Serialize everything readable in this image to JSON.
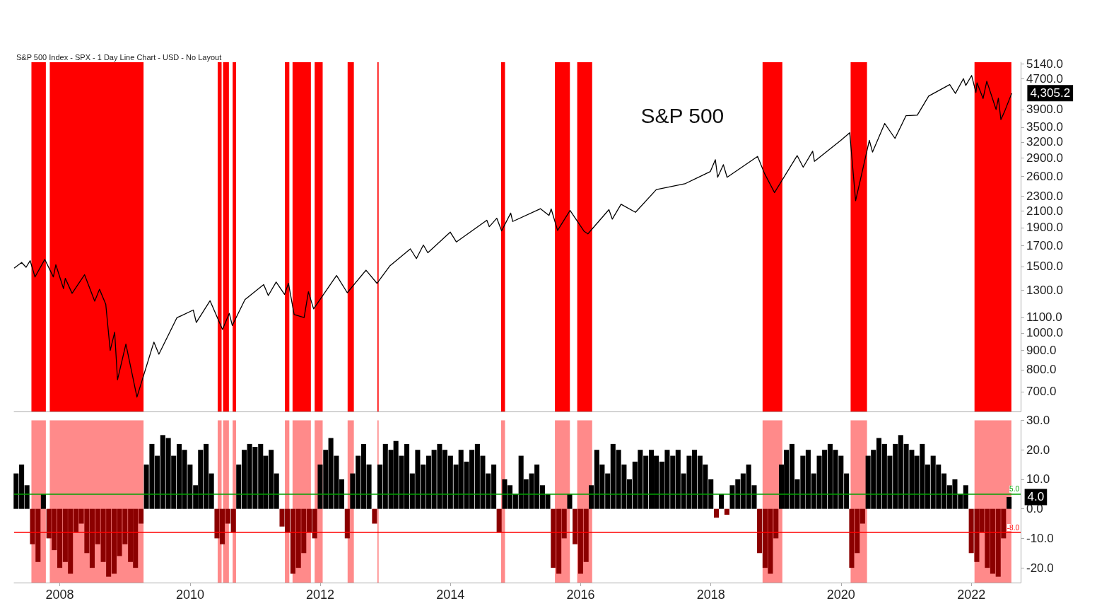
{
  "chart_data": [
    {
      "type": "line",
      "title": "S&P 500",
      "subtitle": "S&P 500 Index - SPX - 1 Day Line Chart - USD - No Layout",
      "log": "y",
      "grid": false,
      "tick_labels": "y",
      "xlim": [
        "2007-04-20",
        "2022-10-05"
      ],
      "ylim": [
        620,
        5200
      ],
      "yticks": [
        {
          "value": 700,
          "label": "700.0"
        },
        {
          "value": 800,
          "label": "800.0"
        },
        {
          "value": 900,
          "label": "900.0"
        },
        {
          "value": 1000,
          "label": "1000.0"
        },
        {
          "value": 1100,
          "label": "1100.0"
        },
        {
          "value": 1300,
          "label": "1300.0"
        },
        {
          "value": 1500,
          "label": "1500.0"
        },
        {
          "value": 1700,
          "label": "1700.0"
        },
        {
          "value": 1900,
          "label": "1900.0"
        },
        {
          "value": 2100,
          "label": "2100.0"
        },
        {
          "value": 2300,
          "label": "2300.0"
        },
        {
          "value": 2600,
          "label": "2600.0"
        },
        {
          "value": 2900,
          "label": "2900.0"
        },
        {
          "value": 3200,
          "label": "3200.0"
        },
        {
          "value": 3500,
          "label": "3500.0"
        },
        {
          "value": 3900,
          "label": "3900.0"
        },
        {
          "value": 4700,
          "label": "4700.0"
        },
        {
          "value": 5140,
          "label": "5140.0"
        }
      ],
      "series": [
        {
          "color": "#000000",
          "x": [
            "2007-04-20",
            "2007-06-01",
            "2007-06-26",
            "2007-07-19",
            "2007-08-15",
            "2007-10-09",
            "2007-11-26",
            "2007-12-10",
            "2008-01-22",
            "2008-02-01",
            "2008-03-10",
            "2008-05-19",
            "2008-07-15",
            "2008-08-11",
            "2008-09-15",
            "2008-10-10",
            "2008-11-04",
            "2008-11-20",
            "2009-01-06",
            "2009-03-09",
            "2009-06-12",
            "2009-07-10",
            "2009-10-19",
            "2010-01-19",
            "2010-02-05",
            "2010-04-23",
            "2010-07-02",
            "2010-08-09",
            "2010-08-26",
            "2010-11-05",
            "2011-02-18",
            "2011-03-16",
            "2011-04-29",
            "2011-06-15",
            "2011-07-07",
            "2011-08-08",
            "2011-10-03",
            "2011-10-27",
            "2011-11-25",
            "2012-04-02",
            "2012-06-01",
            "2012-09-14",
            "2012-11-15",
            "2013-01-25",
            "2013-05-21",
            "2013-06-24",
            "2013-08-02",
            "2013-08-27",
            "2013-12-31",
            "2014-02-03",
            "2014-07-24",
            "2014-08-07",
            "2014-09-18",
            "2014-10-15",
            "2014-12-05",
            "2014-12-16",
            "2015-05-21",
            "2015-07-08",
            "2015-07-20",
            "2015-08-25",
            "2015-11-03",
            "2016-01-20",
            "2016-02-11",
            "2016-06-08",
            "2016-06-27",
            "2016-08-15",
            "2016-11-04",
            "2017-03-01",
            "2017-08-08",
            "2017-12-29",
            "2018-01-26",
            "2018-02-08",
            "2018-03-12",
            "2018-04-02",
            "2018-09-20",
            "2018-10-29",
            "2018-12-24",
            "2019-04-30",
            "2019-06-03",
            "2019-07-26",
            "2019-08-05",
            "2019-12-31",
            "2020-02-19",
            "2020-03-23",
            "2020-06-08",
            "2020-06-26",
            "2020-09-02",
            "2020-10-30",
            "2020-12-31",
            "2021-03-04",
            "2021-05-07",
            "2021-09-02",
            "2021-10-04",
            "2021-11-18",
            "2021-12-01",
            "2022-01-03",
            "2022-01-27",
            "2022-02-02",
            "2022-03-08",
            "2022-03-29",
            "2022-05-20",
            "2022-06-02",
            "2022-06-16",
            "2022-07-06",
            "2022-08-16"
          ],
          "values": [
            1484,
            1536,
            1492,
            1553,
            1406,
            1565,
            1407,
            1515,
            1310,
            1395,
            1273,
            1426,
            1214,
            1305,
            1192,
            899,
            1005,
            752,
            935,
            677,
            946,
            879,
            1097,
            1150,
            1066,
            1217,
            1022,
            1127,
            1047,
            1225,
            1343,
            1256,
            1364,
            1265,
            1353,
            1119,
            1099,
            1285,
            1158,
            1419,
            1278,
            1466,
            1353,
            1503,
            1669,
            1573,
            1709,
            1630,
            1848,
            1741,
            1987,
            1910,
            2011,
            1862,
            2075,
            1972,
            2131,
            2046,
            2128,
            1867,
            2109,
            1859,
            1829,
            2119,
            2000,
            2190,
            2085,
            2395,
            2480,
            2673,
            2872,
            2581,
            2786,
            2581,
            2930,
            2641,
            2351,
            2945,
            2744,
            3025,
            2844,
            3230,
            3386,
            2237,
            3232,
            3009,
            3580,
            3270,
            3756,
            3768,
            4232,
            4537,
            4300,
            4704,
            4513,
            4796,
            4326,
            4589,
            4170,
            4631,
            3901,
            4176,
            3666,
            3845,
            4305.2
          ]
        }
      ],
      "annotations": [
        {
          "text": "4,305.2",
          "x": "2022-08-16",
          "y": 4305.2
        }
      ],
      "bands": [
        {
          "axis": "x",
          "from": "2007-07-26",
          "to": "2007-10-15",
          "color": "#ff0000"
        },
        {
          "axis": "x",
          "from": "2007-11-06",
          "to": "2009-04-15",
          "color": "#ff0000"
        },
        {
          "axis": "x",
          "from": "2010-06-05",
          "to": "2010-06-27",
          "color": "#ff0000"
        },
        {
          "axis": "x",
          "from": "2010-07-05",
          "to": "2010-08-07",
          "color": "#ff0000"
        },
        {
          "axis": "x",
          "from": "2010-08-28",
          "to": "2010-09-16",
          "color": "#ff0000"
        },
        {
          "axis": "x",
          "from": "2011-06-17",
          "to": "2011-07-12",
          "color": "#ff0000"
        },
        {
          "axis": "x",
          "from": "2011-07-30",
          "to": "2011-11-10",
          "color": "#ff0000"
        },
        {
          "axis": "x",
          "from": "2011-12-01",
          "to": "2012-01-15",
          "color": "#ff0000"
        },
        {
          "axis": "x",
          "from": "2012-06-03",
          "to": "2012-07-08",
          "color": "#ff0000"
        },
        {
          "axis": "x",
          "from": "2012-11-17",
          "to": "2012-11-24",
          "color": "#ff0000"
        },
        {
          "axis": "x",
          "from": "2014-10-12",
          "to": "2014-11-03",
          "color": "#ff0000"
        },
        {
          "axis": "x",
          "from": "2015-08-10",
          "to": "2015-11-02",
          "color": "#ff0000"
        },
        {
          "axis": "x",
          "from": "2015-12-13",
          "to": "2016-03-06",
          "color": "#ff0000"
        },
        {
          "axis": "x",
          "from": "2018-10-18",
          "to": "2019-02-06",
          "color": "#ff0000"
        },
        {
          "axis": "x",
          "from": "2020-02-24",
          "to": "2020-05-26",
          "color": "#ff0000"
        },
        {
          "axis": "x",
          "from": "2022-01-19",
          "to": "2022-08-14",
          "color": "#ff0000"
        }
      ]
    },
    {
      "type": "bar",
      "grid": false,
      "xlim": [
        "2007-04-20",
        "2022-10-05"
      ],
      "ylim": [
        -25,
        30
      ],
      "xticks": [
        "2008",
        "2010",
        "2012",
        "2014",
        "2016",
        "2018",
        "2020",
        "2022"
      ],
      "yticks": [
        {
          "value": -20,
          "label": "-20.0"
        },
        {
          "value": -10,
          "label": "-10.0"
        },
        {
          "value": 0,
          "label": "0.0"
        },
        {
          "value": 10,
          "label": "10.0"
        },
        {
          "value": 20,
          "label": "20.0"
        },
        {
          "value": 30,
          "label": "30.0"
        }
      ],
      "x": [
        "2007-05",
        "2007-06",
        "2007-07",
        "2007-08",
        "2007-09",
        "2007-10",
        "2007-11",
        "2007-12",
        "2008-01",
        "2008-02",
        "2008-03",
        "2008-04",
        "2008-05",
        "2008-06",
        "2008-07",
        "2008-08",
        "2008-09",
        "2008-10",
        "2008-11",
        "2008-12",
        "2009-01",
        "2009-02",
        "2009-03",
        "2009-04",
        "2009-05",
        "2009-06",
        "2009-07",
        "2009-08",
        "2009-09",
        "2009-10",
        "2009-11",
        "2009-12",
        "2010-01",
        "2010-02",
        "2010-03",
        "2010-04",
        "2010-05",
        "2010-06",
        "2010-07",
        "2010-08",
        "2010-09",
        "2010-10",
        "2010-11",
        "2010-12",
        "2011-01",
        "2011-02",
        "2011-03",
        "2011-04",
        "2011-05",
        "2011-06",
        "2011-07",
        "2011-08",
        "2011-09",
        "2011-10",
        "2011-11",
        "2011-12",
        "2012-01",
        "2012-02",
        "2012-03",
        "2012-04",
        "2012-05",
        "2012-06",
        "2012-07",
        "2012-08",
        "2012-09",
        "2012-10",
        "2012-11",
        "2012-12",
        "2013-01",
        "2013-02",
        "2013-03",
        "2013-04",
        "2013-05",
        "2013-06",
        "2013-07",
        "2013-08",
        "2013-09",
        "2013-10",
        "2013-11",
        "2013-12",
        "2014-01",
        "2014-02",
        "2014-03",
        "2014-04",
        "2014-05",
        "2014-06",
        "2014-07",
        "2014-08",
        "2014-09",
        "2014-10",
        "2014-11",
        "2014-12",
        "2015-01",
        "2015-02",
        "2015-03",
        "2015-04",
        "2015-05",
        "2015-06",
        "2015-07",
        "2015-08",
        "2015-09",
        "2015-10",
        "2015-11",
        "2015-12",
        "2016-01",
        "2016-02",
        "2016-03",
        "2016-04",
        "2016-05",
        "2016-06",
        "2016-07",
        "2016-08",
        "2016-09",
        "2016-10",
        "2016-11",
        "2016-12",
        "2017-01",
        "2017-02",
        "2017-03",
        "2017-04",
        "2017-05",
        "2017-06",
        "2017-07",
        "2017-08",
        "2017-09",
        "2017-10",
        "2017-11",
        "2017-12",
        "2018-01",
        "2018-02",
        "2018-03",
        "2018-04",
        "2018-05",
        "2018-06",
        "2018-07",
        "2018-08",
        "2018-09",
        "2018-10",
        "2018-11",
        "2018-12",
        "2019-01",
        "2019-02",
        "2019-03",
        "2019-04",
        "2019-05",
        "2019-06",
        "2019-07",
        "2019-08",
        "2019-09",
        "2019-10",
        "2019-11",
        "2019-12",
        "2020-01",
        "2020-02",
        "2020-03",
        "2020-04",
        "2020-05",
        "2020-06",
        "2020-07",
        "2020-08",
        "2020-09",
        "2020-10",
        "2020-11",
        "2020-12",
        "2021-01",
        "2021-02",
        "2021-03",
        "2021-04",
        "2021-05",
        "2021-06",
        "2021-07",
        "2021-08",
        "2021-09",
        "2021-10",
        "2021-11",
        "2021-12",
        "2022-01",
        "2022-02",
        "2022-03",
        "2022-04",
        "2022-05",
        "2022-06",
        "2022-07",
        "2022-08"
      ],
      "series": [
        {
          "color": "#000000",
          "values": [
            12,
            15,
            8,
            null,
            null,
            5,
            null,
            null,
            null,
            null,
            null,
            null,
            null,
            null,
            null,
            null,
            null,
            null,
            null,
            null,
            null,
            null,
            null,
            null,
            15,
            22,
            18,
            25,
            24,
            18,
            22,
            20,
            15,
            8,
            20,
            22,
            12,
            null,
            null,
            null,
            null,
            15,
            20,
            22,
            21,
            22,
            18,
            20,
            12,
            null,
            null,
            null,
            null,
            null,
            null,
            null,
            15,
            20,
            24,
            18,
            10,
            null,
            12,
            18,
            22,
            15,
            null,
            15,
            22,
            20,
            23,
            18,
            22,
            12,
            20,
            15,
            18,
            20,
            22,
            20,
            18,
            15,
            20,
            16,
            20,
            22,
            18,
            12,
            15,
            null,
            10,
            8,
            5,
            18,
            10,
            12,
            15,
            8,
            5,
            null,
            null,
            null,
            5,
            null,
            null,
            null,
            8,
            20,
            15,
            12,
            22,
            20,
            15,
            10,
            16,
            20,
            18,
            20,
            18,
            16,
            20,
            18,
            20,
            12,
            18,
            20,
            18,
            15,
            10,
            null,
            5,
            null,
            8,
            10,
            12,
            15,
            8,
            null,
            null,
            null,
            null,
            15,
            20,
            22,
            10,
            18,
            20,
            12,
            18,
            20,
            22,
            20,
            18,
            12,
            null,
            null,
            null,
            18,
            20,
            24,
            22,
            18,
            22,
            25,
            22,
            20,
            18,
            22,
            15,
            18,
            15,
            12,
            8,
            10,
            5,
            8,
            null,
            null,
            null,
            null,
            null,
            null,
            null,
            4
          ]
        },
        {
          "color": "#8b0000",
          "values": [
            null,
            null,
            null,
            -12,
            -18,
            null,
            -10,
            -14,
            -20,
            -18,
            -22,
            -8,
            -5,
            -15,
            -20,
            -12,
            -18,
            -23,
            -22,
            -16,
            -12,
            -18,
            -20,
            -5,
            null,
            null,
            null,
            null,
            null,
            null,
            null,
            null,
            null,
            null,
            null,
            null,
            null,
            -10,
            -12,
            -5,
            -8,
            null,
            null,
            null,
            null,
            null,
            null,
            null,
            null,
            -6,
            -8,
            -22,
            -20,
            -15,
            -8,
            -10,
            null,
            null,
            null,
            null,
            null,
            -10,
            null,
            null,
            null,
            null,
            -5,
            null,
            null,
            null,
            null,
            null,
            null,
            null,
            null,
            null,
            null,
            null,
            null,
            null,
            null,
            null,
            null,
            null,
            null,
            null,
            null,
            null,
            null,
            -8,
            null,
            null,
            null,
            null,
            null,
            null,
            null,
            null,
            null,
            -20,
            -22,
            -10,
            null,
            -12,
            -22,
            -18,
            null,
            null,
            null,
            null,
            null,
            null,
            null,
            null,
            null,
            null,
            null,
            null,
            null,
            null,
            null,
            null,
            null,
            null,
            null,
            null,
            null,
            null,
            null,
            -3,
            null,
            -2,
            null,
            null,
            null,
            null,
            null,
            -15,
            -20,
            -22,
            -10,
            null,
            null,
            null,
            null,
            null,
            null,
            null,
            null,
            null,
            null,
            null,
            null,
            null,
            -20,
            -15,
            -5,
            null,
            null,
            null,
            null,
            null,
            null,
            null,
            null,
            null,
            null,
            null,
            null,
            null,
            null,
            null,
            null,
            null,
            null,
            null,
            -15,
            -18,
            -8,
            -20,
            -22,
            -23,
            -10,
            null
          ]
        }
      ],
      "annotations": [
        {
          "text": "4.0",
          "x": "2022-08",
          "y": 4
        }
      ],
      "ref_lines": [
        {
          "axis": "y",
          "value": 5,
          "label": "5.0",
          "color": "#00a000"
        },
        {
          "axis": "y",
          "value": -8,
          "label": "-8.0",
          "color": "#ff0000"
        }
      ],
      "bands": [
        {
          "axis": "x",
          "from": "2007-07-26",
          "to": "2007-10-15",
          "color": "#ff8a8a"
        },
        {
          "axis": "x",
          "from": "2007-11-06",
          "to": "2009-04-15",
          "color": "#ff8a8a"
        },
        {
          "axis": "x",
          "from": "2010-06-05",
          "to": "2010-06-27",
          "color": "#ff8a8a"
        },
        {
          "axis": "x",
          "from": "2010-07-05",
          "to": "2010-08-07",
          "color": "#ff8a8a"
        },
        {
          "axis": "x",
          "from": "2010-08-28",
          "to": "2010-09-16",
          "color": "#ff8a8a"
        },
        {
          "axis": "x",
          "from": "2011-06-17",
          "to": "2011-07-12",
          "color": "#ff8a8a"
        },
        {
          "axis": "x",
          "from": "2011-07-30",
          "to": "2011-11-10",
          "color": "#ff8a8a"
        },
        {
          "axis": "x",
          "from": "2011-12-01",
          "to": "2012-01-15",
          "color": "#ff8a8a"
        },
        {
          "axis": "x",
          "from": "2012-06-03",
          "to": "2012-07-08",
          "color": "#ff8a8a"
        },
        {
          "axis": "x",
          "from": "2012-11-17",
          "to": "2012-11-24",
          "color": "#ff8a8a"
        },
        {
          "axis": "x",
          "from": "2014-10-12",
          "to": "2014-11-03",
          "color": "#ff8a8a"
        },
        {
          "axis": "x",
          "from": "2015-08-10",
          "to": "2015-11-02",
          "color": "#ff8a8a"
        },
        {
          "axis": "x",
          "from": "2015-12-13",
          "to": "2016-03-06",
          "color": "#ff8a8a"
        },
        {
          "axis": "x",
          "from": "2018-10-18",
          "to": "2019-02-06",
          "color": "#ff8a8a"
        },
        {
          "axis": "x",
          "from": "2020-02-24",
          "to": "2020-05-26",
          "color": "#ff8a8a"
        },
        {
          "axis": "x",
          "from": "2022-01-19",
          "to": "2022-08-14",
          "color": "#ff8a8a"
        }
      ]
    }
  ]
}
